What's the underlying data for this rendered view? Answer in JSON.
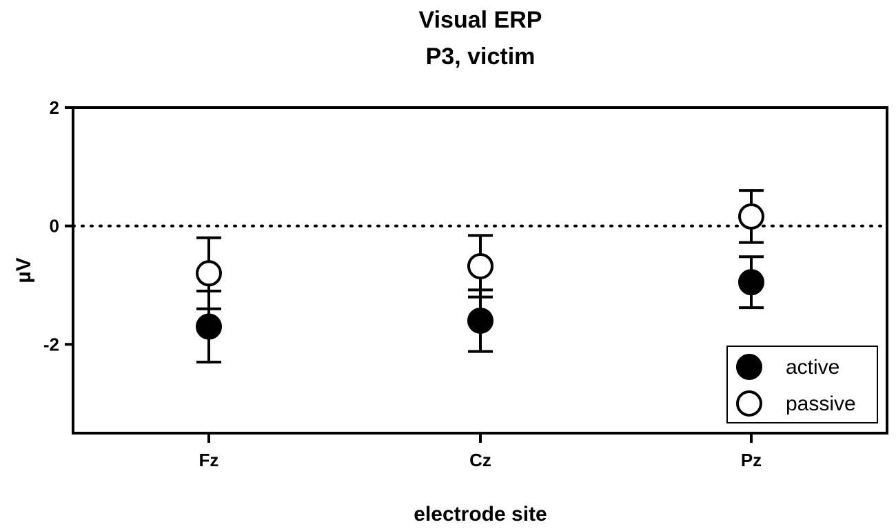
{
  "chart_data": {
    "type": "scatter",
    "title": "Visual ERP",
    "subtitle": "P3, victim",
    "xlabel": "electrode site",
    "ylabel": "µV",
    "categories": [
      "Fz",
      "Cz",
      "Pz"
    ],
    "ylim": [
      -3.5,
      2
    ],
    "yticks": [
      2,
      0,
      -2
    ],
    "yticklabels": [
      "2",
      "0",
      "-2"
    ],
    "reference_line": {
      "y": 0,
      "style": "dotted"
    },
    "legend": {
      "position": "bottom-right"
    },
    "grid": false,
    "series": [
      {
        "name": "active",
        "marker": "filled-circle",
        "color": "#000000",
        "values": [
          -1.7,
          -1.6,
          -0.95
        ],
        "error": [
          0.6,
          0.52,
          0.43
        ]
      },
      {
        "name": "passive",
        "marker": "open-circle",
        "color": "#000000",
        "values": [
          -0.8,
          -0.68,
          0.16
        ],
        "error": [
          0.6,
          0.52,
          0.44
        ]
      }
    ]
  }
}
